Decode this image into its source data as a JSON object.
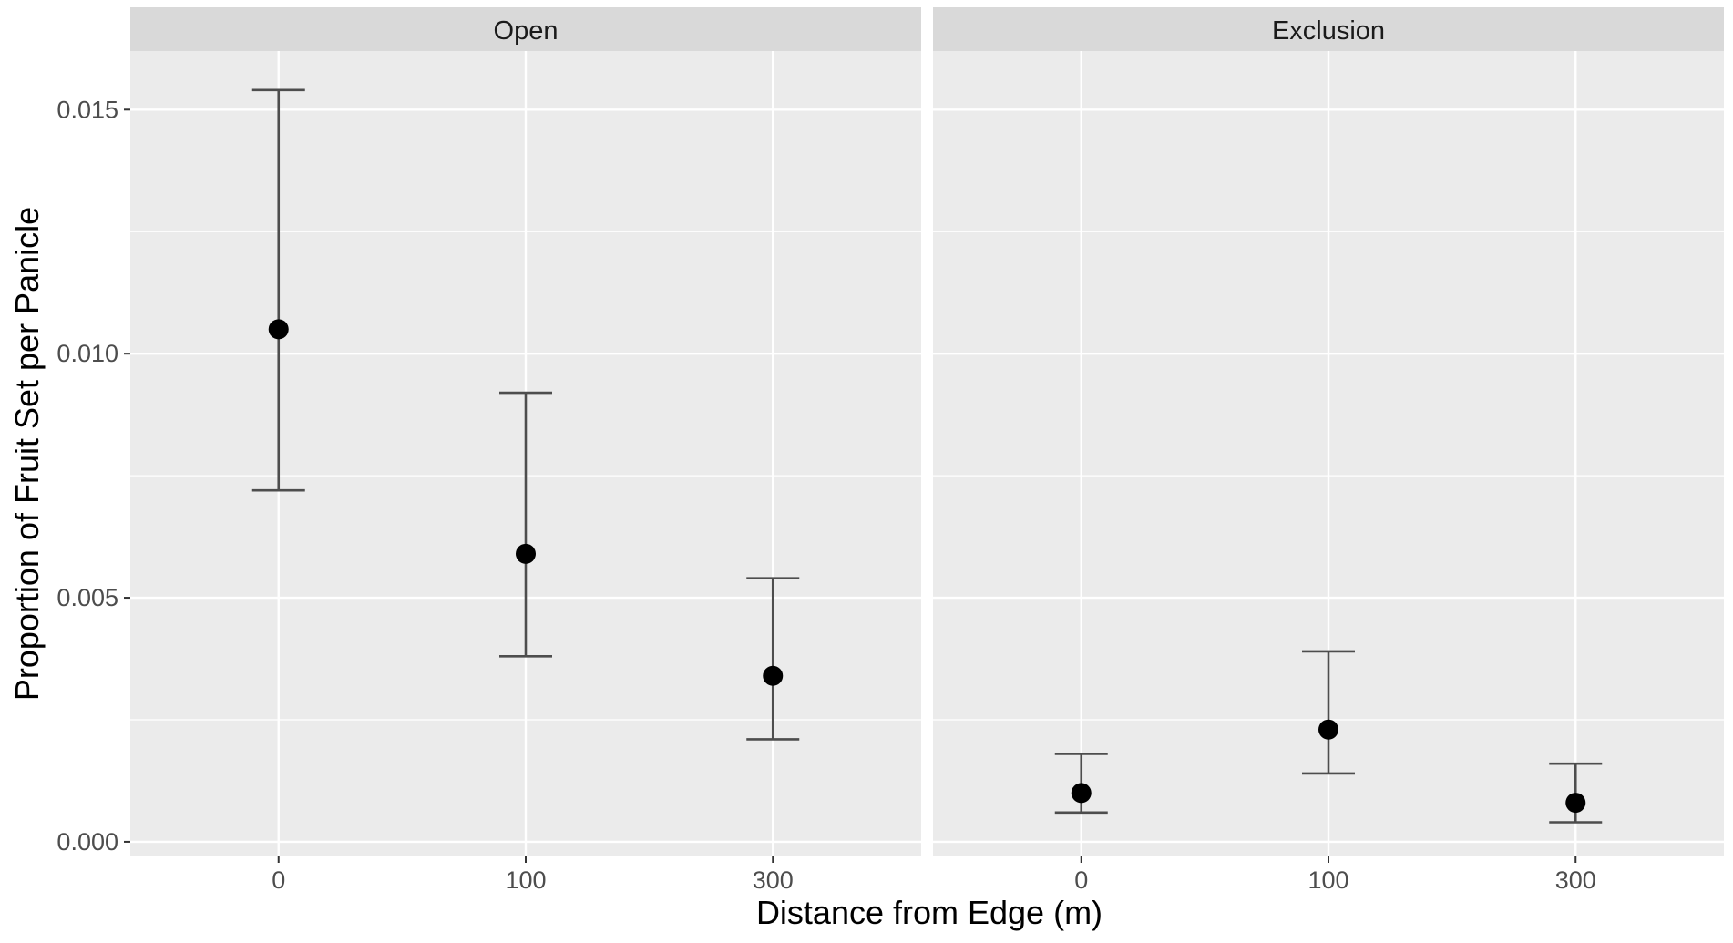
{
  "chart_data": {
    "type": "scatter",
    "subtype": "point-with-errorbars, faceted",
    "xlabel": "Distance from Edge (m)",
    "ylabel": "Proportion of Fruit Set per Panicle",
    "ylim": [
      -0.0003,
      0.0162
    ],
    "yticks": [
      0.0,
      0.005,
      0.01,
      0.015
    ],
    "ytick_labels": [
      "0.000",
      "0.005",
      "0.010",
      "0.015"
    ],
    "categories": [
      "0",
      "100",
      "300"
    ],
    "grid": true,
    "colors": {
      "panel_bg": "#ebebeb",
      "strip_bg": "#d9d9d9",
      "grid": "#ffffff",
      "point": "#000000",
      "errorbar": "#4d4d4d"
    },
    "facets": [
      {
        "label": "Open",
        "points": [
          {
            "x": "0",
            "y": 0.0105,
            "ymin": 0.0072,
            "ymax": 0.0154
          },
          {
            "x": "100",
            "y": 0.0059,
            "ymin": 0.0038,
            "ymax": 0.0092
          },
          {
            "x": "300",
            "y": 0.0034,
            "ymin": 0.0021,
            "ymax": 0.0054
          }
        ]
      },
      {
        "label": "Exclusion",
        "points": [
          {
            "x": "0",
            "y": 0.001,
            "ymin": 0.0006,
            "ymax": 0.0018
          },
          {
            "x": "100",
            "y": 0.0023,
            "ymin": 0.0014,
            "ymax": 0.0039
          },
          {
            "x": "300",
            "y": 0.0008,
            "ymin": 0.0004,
            "ymax": 0.0016
          }
        ]
      }
    ]
  }
}
